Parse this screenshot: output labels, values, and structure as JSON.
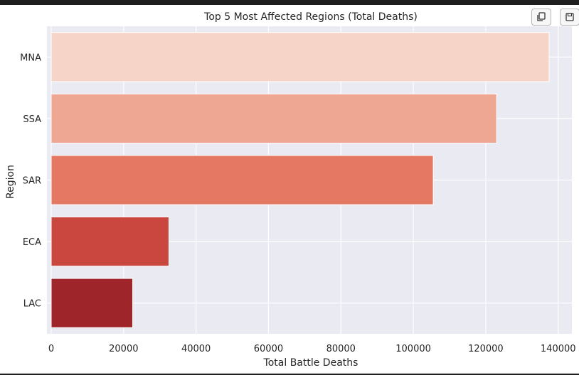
{
  "toolbar": {
    "copy_icon": "copy-icon",
    "save_icon": "floppy-disk-icon"
  },
  "chart_data": {
    "type": "bar",
    "orientation": "horizontal",
    "title": "Top 5 Most Affected Regions (Total Deaths)",
    "xlabel": "Total Battle Deaths",
    "ylabel": "Region",
    "categories": [
      "MNA",
      "SSA",
      "SAR",
      "ECA",
      "LAC"
    ],
    "values": [
      137500,
      123000,
      105500,
      32500,
      22500
    ],
    "colors": [
      "#f6d5c8",
      "#eda792",
      "#e57862",
      "#ca4740",
      "#9e262b"
    ],
    "xlim": [
      0,
      144000
    ],
    "xticks": [
      0,
      20000,
      40000,
      60000,
      80000,
      100000,
      120000,
      140000
    ],
    "grid": true,
    "background": "#eaeaf2"
  }
}
